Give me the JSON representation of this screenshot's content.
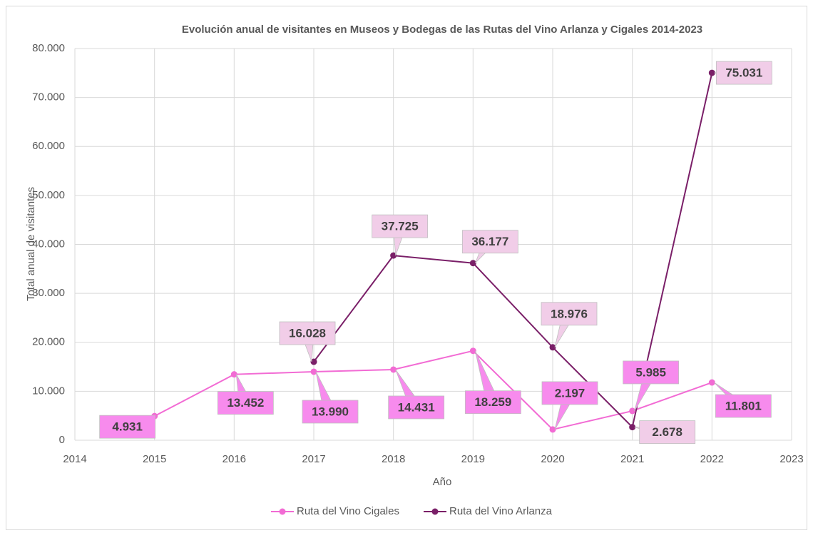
{
  "chart_data": {
    "type": "line",
    "title": "Evolución anual de visitantes en Museos y Bodegas de las Rutas del Vino Arlanza y Cigales 2014-2023",
    "xlabel": "Año",
    "ylabel": "Total anual de visitantes",
    "x": [
      2015,
      2016,
      2017,
      2018,
      2019,
      2020,
      2021,
      2022
    ],
    "series": [
      {
        "name": "Ruta del Vino Cigales",
        "color": "#f26bd4",
        "label_color": "#f78bed",
        "values": [
          4931,
          13452,
          13990,
          14431,
          18259,
          2197,
          5985,
          11801
        ],
        "value_labels": [
          "4.931",
          "13.452",
          "13.990",
          "14.431",
          "18.259",
          "2.197",
          "5.985",
          "11.801"
        ]
      },
      {
        "name": "Ruta del Vino Arlanza",
        "color": "#7a1f68",
        "label_color": "#f1cde8",
        "values": [
          null,
          null,
          16028,
          37725,
          36177,
          18976,
          2678,
          75031
        ],
        "value_labels": [
          null,
          null,
          "16.028",
          "37.725",
          "36.177",
          "18.976",
          "2.678",
          "75.031"
        ]
      }
    ],
    "xlim": [
      2014,
      2023
    ],
    "xticks": [
      2014,
      2015,
      2016,
      2017,
      2018,
      2019,
      2020,
      2021,
      2022,
      2023
    ],
    "ylim": [
      0,
      80000
    ],
    "yticks": [
      0,
      {
        "value": 10000,
        "label": "10.000"
      },
      {
        "value": 20000,
        "label": "20.000"
      },
      {
        "value": 30000,
        "label": "30.000"
      },
      {
        "value": 40000,
        "label": "40.000"
      },
      {
        "value": 50000,
        "label": "50.000"
      },
      {
        "value": 60000,
        "label": "60.000"
      },
      {
        "value": 70000,
        "label": "70.000"
      },
      {
        "value": 80000,
        "label": "80.000"
      }
    ],
    "grid": true,
    "legend": "bottom"
  }
}
